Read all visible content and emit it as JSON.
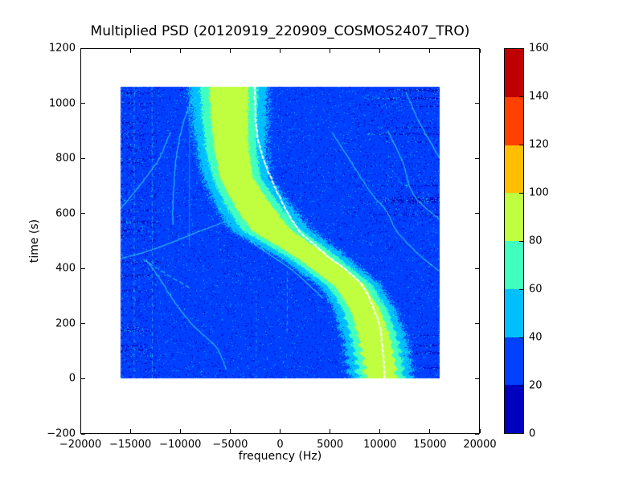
{
  "chart_data": {
    "type": "heatmap",
    "title": "Multiplied PSD (20120919_220909_COSMOS2407_TRO)",
    "xlabel": "frequency (Hz)",
    "ylabel": "time (s)",
    "x_range": [
      -20000,
      20000
    ],
    "y_range": [
      -200,
      1200
    ],
    "grid": false,
    "x_ticks": {
      "values": [
        -20000,
        -15000,
        -10000,
        -5000,
        0,
        5000,
        10000,
        15000,
        20000
      ],
      "labels": [
        "−20000",
        "−15000",
        "−10000",
        "−5000",
        "0",
        "5000",
        "10000",
        "15000",
        "20000"
      ]
    },
    "y_ticks": {
      "values": [
        -200,
        0,
        200,
        400,
        600,
        800,
        1000,
        1200
      ],
      "labels": [
        "−200",
        "0",
        "200",
        "400",
        "600",
        "800",
        "1000",
        "1200"
      ]
    },
    "colorbar": {
      "position": "right",
      "vmin": 0,
      "vmax": 160,
      "tick_values": [
        0,
        20,
        40,
        60,
        80,
        100,
        120,
        140,
        160
      ],
      "tick_labels": [
        "0",
        "20",
        "40",
        "60",
        "80",
        "100",
        "120",
        "140",
        "160"
      ],
      "level_colors_bottom_to_top": [
        "#0000bf",
        "#0040ff",
        "#00bfff",
        "#40ffbf",
        "#bfff40",
        "#ffbf00",
        "#ff4000",
        "#bf0000"
      ]
    },
    "heatmap_extent": {
      "f": [
        -16000,
        16000
      ],
      "t": [
        0,
        1060
      ]
    },
    "background_noise": {
      "mean_level": 29,
      "dominant_color": "#0040ff"
    },
    "doppler_ridge": {
      "peak_level": 96.5,
      "t": [
        0,
        50,
        150,
        250,
        340,
        440,
        540,
        630,
        730,
        830,
        930,
        1020,
        1060
      ],
      "center_hz": [
        10050,
        9980,
        9440,
        8550,
        6950,
        3350,
        -900,
        -2750,
        -4350,
        -4870,
        -5050,
        -5100,
        -5150
      ],
      "sigma_t": [
        0,
        150,
        300,
        440,
        540,
        630,
        730,
        830,
        930,
        1060
      ],
      "sigma_hz": [
        1950,
        1950,
        1850,
        2100,
        2500,
        2300,
        2050,
        2150,
        2300,
        2450
      ],
      "edge_wobble": {
        "period_s": 32,
        "amplitude_hz": 210,
        "fades_above_t": 300
      }
    },
    "white_marker_track": {
      "t": [
        0,
        100,
        200,
        290,
        340,
        390,
        440,
        490,
        535,
        630,
        730,
        830,
        920,
        1020,
        1060
      ],
      "f": [
        10480,
        10300,
        9900,
        8970,
        8170,
        6800,
        4950,
        3340,
        1970,
        360,
        -930,
        -1950,
        -2400,
        -2520,
        -2550
      ]
    },
    "faint_traces": [
      {
        "name": "trace-left-steep",
        "dashed": false,
        "points": [
          [
            1056,
            -8050
          ],
          [
            980,
            -9200
          ],
          [
            900,
            -9900
          ],
          [
            800,
            -10400
          ],
          [
            700,
            -10650
          ],
          [
            620,
            -10730
          ],
          [
            560,
            -10750
          ]
        ]
      },
      {
        "name": "trace-left-outer",
        "dashed": false,
        "points": [
          [
            894,
            -11000
          ],
          [
            800,
            -12100
          ],
          [
            728,
            -13500
          ],
          [
            670,
            -14740
          ],
          [
            618,
            -15950
          ]
        ]
      },
      {
        "name": "trace-left-mid",
        "dashed": false,
        "points": [
          [
            612,
            -4100
          ],
          [
            575,
            -5300
          ],
          [
            529,
            -8500
          ],
          [
            491,
            -11100
          ],
          [
            458,
            -13700
          ],
          [
            437,
            -15950
          ]
        ]
      },
      {
        "name": "trace-left-dashed",
        "dashed": true,
        "points": [
          [
            432,
            -13700
          ],
          [
            401,
            -12300
          ],
          [
            371,
            -11000
          ],
          [
            346,
            -9800
          ],
          [
            330,
            -9100
          ]
        ]
      },
      {
        "name": "trace-bottom-left",
        "dashed": false,
        "points": [
          [
            35,
            -5400
          ],
          [
            114,
            -6400
          ],
          [
            193,
            -8700
          ],
          [
            281,
            -10600
          ],
          [
            360,
            -12000
          ],
          [
            432,
            -13400
          ]
        ]
      },
      {
        "name": "trace-under-ridge",
        "dashed": false,
        "points": [
          [
            625,
            -6300
          ],
          [
            560,
            -4600
          ],
          [
            480,
            -2200
          ],
          [
            400,
            1000
          ],
          [
            325,
            3340
          ],
          [
            292,
            4300
          ]
        ]
      },
      {
        "name": "trace-right-upper",
        "dashed": false,
        "points": [
          [
            900,
            10800
          ],
          [
            792,
            12200
          ],
          [
            666,
            13400
          ],
          [
            579,
            15900
          ]
        ]
      },
      {
        "name": "trace-right-mid",
        "dashed": false,
        "points": [
          [
            894,
            5200
          ],
          [
            786,
            7100
          ],
          [
            670,
            9200
          ],
          [
            611,
            10600
          ],
          [
            535,
            11700
          ],
          [
            447,
            14000
          ],
          [
            392,
            15900
          ]
        ]
      },
      {
        "name": "trace-right-corner",
        "dashed": false,
        "points": [
          [
            1040,
            12600
          ],
          [
            940,
            13800
          ],
          [
            850,
            15200
          ],
          [
            802,
            15950
          ]
        ]
      }
    ],
    "vertical_lines": [
      {
        "f": -15850,
        "t0": 0,
        "t1": 1060,
        "dashed": true,
        "alpha": 0.4
      },
      {
        "f": -14600,
        "t0": 0,
        "t1": 1060,
        "dashed": true,
        "alpha": 0.55
      },
      {
        "f": -12800,
        "t0": 0,
        "t1": 1060,
        "dashed": true,
        "alpha": 0.5
      },
      {
        "f": -9050,
        "t0": 480,
        "t1": 1060,
        "dashed": false,
        "alpha": 0.4
      },
      {
        "f": -2400,
        "t0": 0,
        "t1": 300,
        "dashed": true,
        "alpha": 0.35
      },
      {
        "f": 700,
        "t0": 170,
        "t1": 390,
        "dashed": true,
        "alpha": 0.55
      }
    ],
    "rfi_speckle_rows": {
      "left_zone": {
        "f_range": [
          -16000,
          -11400
        ],
        "t_range": [
          10,
          1050
        ],
        "count": 24
      },
      "right_upper_zone": {
        "f_range": [
          7600,
          16000
        ],
        "t_range": [
          565,
          1050
        ],
        "count": 17
      },
      "right_bottom_zone": {
        "f_range": [
          12600,
          16000
        ],
        "t_range": [
          8,
          170
        ],
        "count": 6
      }
    }
  }
}
